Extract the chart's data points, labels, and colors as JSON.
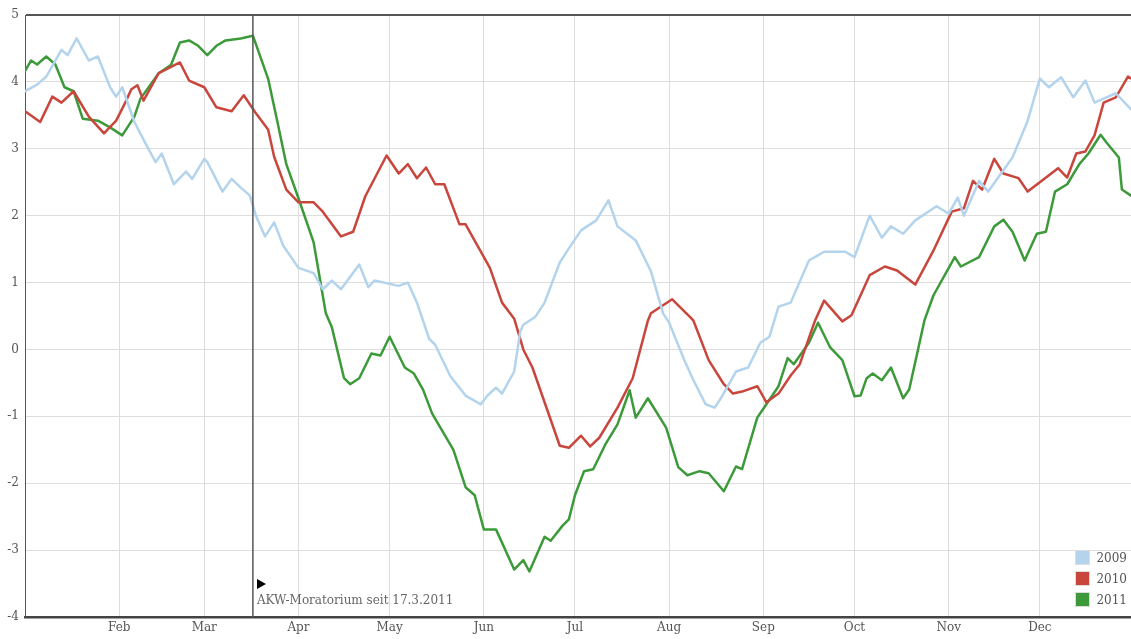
{
  "chart_data": {
    "type": "line",
    "xlim": [
      "--01-01",
      "--12-31"
    ],
    "xticks": [
      {
        "value": "--02-01",
        "label": "Feb"
      },
      {
        "value": "--03-01",
        "label": "Mar"
      },
      {
        "value": "--04-01",
        "label": "Apr"
      },
      {
        "value": "--05-01",
        "label": "May"
      },
      {
        "value": "--06-01",
        "label": "Jun"
      },
      {
        "value": "--07-01",
        "label": "Jul"
      },
      {
        "value": "--08-01",
        "label": "Aug"
      },
      {
        "value": "--09-01",
        "label": "Sep"
      },
      {
        "value": "--10-01",
        "label": "Oct"
      },
      {
        "value": "--11-01",
        "label": "Nov"
      },
      {
        "value": "--12-01",
        "label": "Dec"
      }
    ],
    "ylim": [
      -4,
      5
    ],
    "yticks": [
      -4,
      -3,
      -2,
      -1,
      0,
      1,
      2,
      3,
      4,
      5
    ],
    "grid": true,
    "legend": "bottom right",
    "marker": "none",
    "line_style": "solid",
    "ref_lines": [
      {
        "axis": "x",
        "value": "--03-17",
        "label": "AKW-Moratorium seit 17.3.2011",
        "color": "#555555"
      }
    ],
    "series": [
      {
        "name": "2009",
        "color": "#b3d4ec",
        "x": [
          "--01-01",
          "--01-05",
          "--01-08",
          "--01-13",
          "--01-15",
          "--01-18",
          "--01-22",
          "--01-25",
          "--01-29",
          "--01-31",
          "--02-02",
          "--02-06",
          "--02-10",
          "--02-13",
          "--02-15",
          "--02-19",
          "--02-23",
          "--02-25",
          "--03-01",
          "--03-02",
          "--03-07",
          "--03-10",
          "--03-13",
          "--03-16",
          "--03-18",
          "--03-21",
          "--03-24",
          "--03-27",
          "--04-01",
          "--04-06",
          "--04-09",
          "--04-12",
          "--04-15",
          "--04-21",
          "--04-24",
          "--04-26",
          "--05-04",
          "--05-07",
          "--05-10",
          "--05-12",
          "--05-14",
          "--05-16",
          "--05-21",
          "--05-26",
          "--05-31",
          "--06-02",
          "--06-05",
          "--06-07",
          "--06-11",
          "--06-13",
          "--06-14",
          "--06-18",
          "--06-21",
          "--06-26",
          "--06-29",
          "--07-03",
          "--07-08",
          "--07-12",
          "--07-15",
          "--07-21",
          "--07-26",
          "--07-30",
          "--08-01",
          "--08-06",
          "--08-09",
          "--08-13",
          "--08-16",
          "--08-18",
          "--08-23",
          "--08-27",
          "--08-31",
          "--09-03",
          "--09-06",
          "--09-10",
          "--09-16",
          "--09-21",
          "--09-28",
          "--10-01",
          "--10-06",
          "--10-10",
          "--10-13",
          "--10-17",
          "--10-21",
          "--10-28",
          "--11-01",
          "--11-04",
          "--11-06",
          "--11-11",
          "--11-14",
          "--11-22",
          "--11-27",
          "--12-01",
          "--12-04",
          "--12-08",
          "--12-12",
          "--12-16",
          "--12-19",
          "--12-22",
          "--12-26",
          "--12-31"
        ],
        "values": [
          3.86,
          3.96,
          4.08,
          4.48,
          4.4,
          4.65,
          4.32,
          4.38,
          3.92,
          3.78,
          3.92,
          3.4,
          3.05,
          2.8,
          2.93,
          2.47,
          2.66,
          2.55,
          2.85,
          2.8,
          2.36,
          2.55,
          2.42,
          2.3,
          2.0,
          1.69,
          1.9,
          1.55,
          1.22,
          1.14,
          0.9,
          1.03,
          0.9,
          1.27,
          0.93,
          1.03,
          0.95,
          1.0,
          0.7,
          0.43,
          0.16,
          0.07,
          -0.4,
          -0.69,
          -0.82,
          -0.7,
          -0.57,
          -0.66,
          -0.33,
          0.27,
          0.37,
          0.49,
          0.7,
          1.3,
          1.51,
          1.78,
          1.93,
          2.23,
          1.84,
          1.63,
          1.17,
          0.54,
          0.4,
          -0.16,
          -0.46,
          -0.82,
          -0.87,
          -0.73,
          -0.33,
          -0.27,
          0.1,
          0.19,
          0.64,
          0.7,
          1.33,
          1.46,
          1.46,
          1.38,
          2.0,
          1.67,
          1.84,
          1.73,
          1.93,
          2.14,
          2.03,
          2.27,
          2.0,
          2.52,
          2.36,
          2.87,
          3.42,
          4.05,
          3.92,
          4.07,
          3.77,
          4.02,
          3.69,
          3.75,
          3.83,
          3.59
        ]
      },
      {
        "name": "2010",
        "color": "#c9463d",
        "x": [
          "--01-01",
          "--01-06",
          "--01-10",
          "--01-13",
          "--01-17",
          "--01-22",
          "--01-27",
          "--01-31",
          "--02-03",
          "--02-05",
          "--02-07",
          "--02-09",
          "--02-14",
          "--02-21",
          "--02-24",
          "--03-01",
          "--03-05",
          "--03-10",
          "--03-14",
          "--03-18",
          "--03-22",
          "--03-24",
          "--03-28",
          "--04-01",
          "--04-06",
          "--04-09",
          "--04-15",
          "--04-19",
          "--04-23",
          "--04-30",
          "--05-04",
          "--05-07",
          "--05-10",
          "--05-13",
          "--05-16",
          "--05-19",
          "--05-24",
          "--05-26",
          "--06-03",
          "--06-07",
          "--06-11",
          "--06-14",
          "--06-17",
          "--06-26",
          "--06-29",
          "--07-03",
          "--07-06",
          "--07-09",
          "--07-15",
          "--07-20",
          "--07-25",
          "--07-26",
          "--08-02",
          "--08-08",
          "--08-09",
          "--08-14",
          "--08-19",
          "--08-22",
          "--08-25",
          "--08-30",
          "--09-02",
          "--09-06",
          "--09-10",
          "--09-13",
          "--09-18",
          "--09-21",
          "--09-27",
          "--09-30",
          "--10-06",
          "--10-11",
          "--10-15",
          "--10-21",
          "--10-27",
          "--11-02",
          "--11-06",
          "--11-09",
          "--11-12",
          "--11-16",
          "--11-19",
          "--11-24",
          "--11-27",
          "--12-01",
          "--12-07",
          "--12-10",
          "--12-13",
          "--12-16",
          "--12-19",
          "--12-22",
          "--12-26",
          "--12-30",
          "--12-31"
        ],
        "values": [
          3.56,
          3.4,
          3.78,
          3.69,
          3.86,
          3.48,
          3.23,
          3.42,
          3.69,
          3.89,
          3.95,
          3.72,
          4.13,
          4.29,
          4.02,
          3.92,
          3.62,
          3.56,
          3.8,
          3.53,
          3.29,
          2.88,
          2.39,
          2.2,
          2.2,
          2.06,
          1.69,
          1.76,
          2.29,
          2.9,
          2.63,
          2.77,
          2.56,
          2.72,
          2.47,
          2.47,
          1.87,
          1.87,
          1.22,
          0.7,
          0.46,
          0.0,
          -0.27,
          -1.44,
          -1.47,
          -1.29,
          -1.45,
          -1.32,
          -0.87,
          -0.43,
          0.43,
          0.54,
          0.75,
          0.48,
          0.43,
          -0.16,
          -0.52,
          -0.66,
          -0.63,
          -0.55,
          -0.79,
          -0.66,
          -0.39,
          -0.22,
          0.43,
          0.73,
          0.42,
          0.51,
          1.11,
          1.24,
          1.18,
          0.97,
          1.48,
          2.06,
          2.11,
          2.52,
          2.39,
          2.85,
          2.63,
          2.56,
          2.36,
          2.5,
          2.71,
          2.57,
          2.93,
          2.96,
          3.2,
          3.69,
          3.77,
          4.08,
          4.05
        ]
      },
      {
        "name": "2011",
        "color": "#3d9a3a",
        "x": [
          "--01-01",
          "--01-03",
          "--01-05",
          "--01-08",
          "--01-11",
          "--01-14",
          "--01-17",
          "--01-20",
          "--01-25",
          "--01-29",
          "--02-02",
          "--02-06",
          "--02-08",
          "--02-14",
          "--02-18",
          "--02-21",
          "--02-24",
          "--02-27",
          "--03-02",
          "--03-05",
          "--03-08",
          "--03-13",
          "--03-17",
          "--03-22",
          "--03-25",
          "--03-28",
          "--04-01",
          "--04-06",
          "--04-10",
          "--04-12",
          "--04-16",
          "--04-18",
          "--04-21",
          "--04-25",
          "--04-28",
          "--05-01",
          "--05-06",
          "--05-09",
          "--05-12",
          "--05-15",
          "--05-22",
          "--05-26",
          "--05-29",
          "--06-01",
          "--06-05",
          "--06-11",
          "--06-14",
          "--06-16",
          "--06-21",
          "--06-23",
          "--06-27",
          "--06-29",
          "--07-01",
          "--07-04",
          "--07-07",
          "--07-11",
          "--07-15",
          "--07-19",
          "--07-21",
          "--07-25",
          "--07-31",
          "--08-04",
          "--08-07",
          "--08-11",
          "--08-14",
          "--08-19",
          "--08-23",
          "--08-25",
          "--08-30",
          "--09-02",
          "--09-06",
          "--09-09",
          "--09-11",
          "--09-16",
          "--09-19",
          "--09-23",
          "--09-27",
          "--10-01",
          "--10-03",
          "--10-05",
          "--10-07",
          "--10-10",
          "--10-13",
          "--10-17",
          "--10-19",
          "--10-24",
          "--10-27",
          "--11-03",
          "--11-05",
          "--11-11",
          "--11-16",
          "--11-19",
          "--11-22",
          "--11-26",
          "--11-30",
          "--12-03",
          "--12-06",
          "--12-10",
          "--12-14",
          "--12-17",
          "--12-21",
          "--12-23",
          "--12-27",
          "--12-28",
          "--12-31"
        ],
        "values": [
          4.16,
          4.32,
          4.26,
          4.38,
          4.26,
          3.92,
          3.86,
          3.45,
          3.42,
          3.32,
          3.2,
          3.48,
          3.75,
          4.13,
          4.25,
          4.59,
          4.62,
          4.54,
          4.4,
          4.54,
          4.62,
          4.65,
          4.69,
          4.05,
          3.42,
          2.77,
          2.26,
          1.6,
          0.54,
          0.33,
          -0.43,
          -0.52,
          -0.43,
          -0.06,
          -0.09,
          0.19,
          -0.27,
          -0.36,
          -0.6,
          -0.96,
          -1.5,
          -2.06,
          -2.18,
          -2.69,
          -2.69,
          -3.29,
          -3.15,
          -3.32,
          -2.8,
          -2.86,
          -2.63,
          -2.54,
          -2.18,
          -1.82,
          -1.79,
          -1.42,
          -1.12,
          -0.61,
          -1.02,
          -0.73,
          -1.17,
          -1.76,
          -1.88,
          -1.82,
          -1.85,
          -2.12,
          -1.75,
          -1.79,
          -1.02,
          -0.82,
          -0.55,
          -0.13,
          -0.22,
          0.1,
          0.4,
          0.03,
          -0.16,
          -0.7,
          -0.69,
          -0.43,
          -0.36,
          -0.46,
          -0.27,
          -0.73,
          -0.6,
          0.43,
          0.81,
          1.38,
          1.24,
          1.38,
          1.84,
          1.94,
          1.76,
          1.33,
          1.73,
          1.76,
          2.36,
          2.47,
          2.77,
          2.93,
          3.21,
          3.09,
          2.87,
          2.39,
          2.3
        ]
      }
    ]
  }
}
